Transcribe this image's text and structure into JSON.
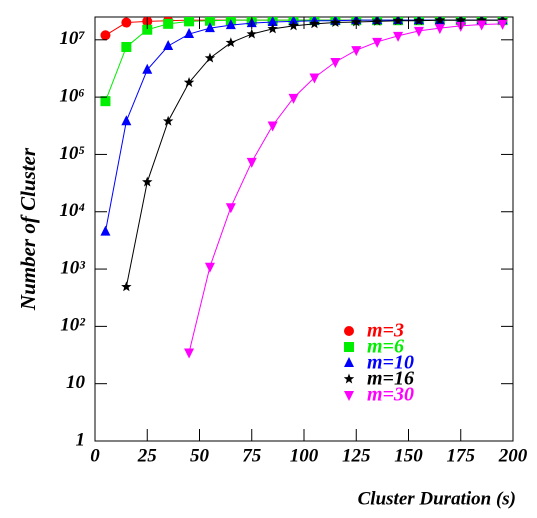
{
  "chart_data": {
    "type": "line",
    "x_label": "Cluster Duration (s)",
    "y_label": "Number of Cluster",
    "x": [
      5,
      15,
      25,
      35,
      45,
      55,
      65,
      75,
      85,
      95,
      105,
      115,
      125,
      135,
      145,
      155,
      165,
      175,
      185,
      195
    ],
    "xlim": [
      0,
      200
    ],
    "xticks": [
      0,
      25,
      50,
      75,
      100,
      125,
      150,
      175,
      200
    ],
    "ylim": [
      1,
      25000000
    ],
    "yscale": "log",
    "yticks": [
      1,
      10,
      {
        "value": 100,
        "label": "10²"
      },
      {
        "value": 1000,
        "label": "10³"
      },
      {
        "value": 10000,
        "label": "10⁴"
      },
      {
        "value": 100000,
        "label": "10⁵"
      },
      {
        "value": 1000000,
        "label": "10⁶"
      },
      {
        "value": 10000000,
        "label": "10⁷"
      }
    ],
    "legend": "lower right",
    "series": [
      {
        "name": "m=3",
        "color": "#ff0000",
        "marker": "circle",
        "values": [
          12000000,
          20000000,
          21000000,
          21500000,
          22000000,
          22000000,
          22000000,
          22000000,
          22000000,
          22000000,
          22000000,
          22000000,
          22000000,
          22000000,
          22000000,
          22000000,
          22000000,
          22000000,
          22000000,
          22000000
        ]
      },
      {
        "name": "m=6",
        "color": "#00ee00",
        "marker": "square",
        "values": [
          850000,
          7500000,
          15000000,
          19000000,
          21000000,
          21500000,
          22000000,
          22000000,
          22000000,
          22000000,
          22000000,
          22000000,
          22000000,
          22000000,
          22000000,
          22000000,
          22000000,
          22000000,
          22000000,
          22000000
        ]
      },
      {
        "name": "m=10",
        "color": "#0000ff",
        "marker": "triangle-up",
        "values": [
          4500,
          380000,
          3000000,
          7800000,
          12600000,
          16000000,
          18000000,
          19500000,
          20500000,
          21000000,
          21500000,
          21500000,
          22000000,
          22000000,
          22000000,
          22000000,
          22000000,
          22000000,
          22000000,
          22000000
        ]
      },
      {
        "name": "m=16",
        "color": "#000000",
        "marker": "star",
        "values": [
          null,
          490,
          33000,
          380000,
          1800000,
          4800000,
          8900000,
          12600000,
          15500000,
          17500000,
          19000000,
          20000000,
          20500000,
          21000000,
          21500000,
          21500000,
          22000000,
          22000000,
          22000000,
          22000000
        ]
      },
      {
        "name": "m=30",
        "color": "#ff00ff",
        "marker": "triangle-down",
        "values": [
          null,
          null,
          null,
          null,
          35,
          1100,
          12000,
          74000,
          320000,
          970000,
          2200000,
          4100000,
          6600000,
          9200000,
          11700000,
          14300000,
          16000000,
          17500000,
          18500000,
          19000000
        ]
      }
    ]
  }
}
